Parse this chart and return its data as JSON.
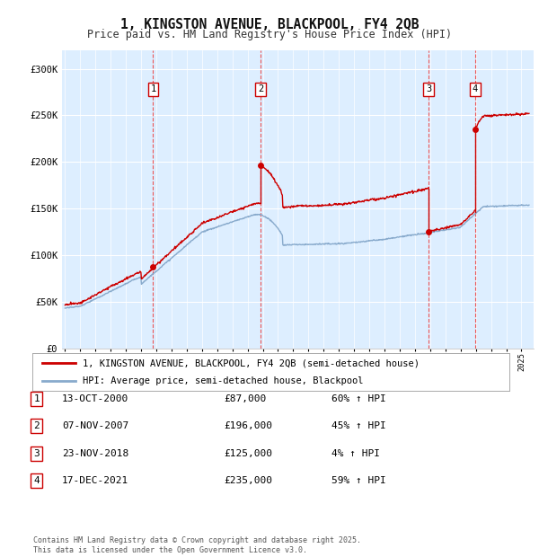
{
  "title": "1, KINGSTON AVENUE, BLACKPOOL, FY4 2QB",
  "subtitle": "Price paid vs. HM Land Registry's House Price Index (HPI)",
  "background_color": "#ffffff",
  "plot_background_color": "#ddeeff",
  "grid_color": "#ffffff",
  "ylim": [
    0,
    320000
  ],
  "yticks": [
    0,
    50000,
    100000,
    150000,
    200000,
    250000,
    300000
  ],
  "ytick_labels": [
    "£0",
    "£50K",
    "£100K",
    "£150K",
    "£200K",
    "£250K",
    "£300K"
  ],
  "year_start": 1995,
  "year_end": 2025,
  "sale_dates_num": [
    2000.79,
    2007.85,
    2018.9,
    2021.96
  ],
  "sale_prices": [
    87000,
    196000,
    125000,
    235000
  ],
  "sale_labels": [
    "1",
    "2",
    "3",
    "4"
  ],
  "sale_dates_str": [
    "13-OCT-2000",
    "07-NOV-2007",
    "23-NOV-2018",
    "17-DEC-2021"
  ],
  "sale_price_strs": [
    "£87,000",
    "£196,000",
    "£125,000",
    "£235,000"
  ],
  "sale_hpi_strs": [
    "60% ↑ HPI",
    "45% ↑ HPI",
    "4% ↑ HPI",
    "59% ↑ HPI"
  ],
  "line_color_red": "#cc0000",
  "line_color_blue": "#88aacc",
  "dashed_line_color": "#ee4444",
  "legend_label_red": "1, KINGSTON AVENUE, BLACKPOOL, FY4 2QB (semi-detached house)",
  "legend_label_blue": "HPI: Average price, semi-detached house, Blackpool",
  "footer": "Contains HM Land Registry data © Crown copyright and database right 2025.\nThis data is licensed under the Open Government Licence v3.0."
}
